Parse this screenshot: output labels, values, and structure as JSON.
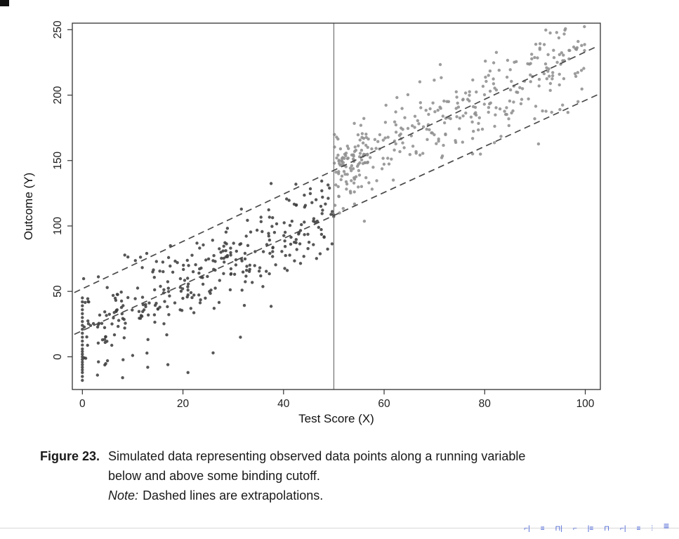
{
  "caption": {
    "label": "Figure 23.",
    "line1": "Simulated data representing observed data points along a running variable",
    "line2": "below and above some binding cutoff.",
    "note_label": "Note:",
    "note_text": "Dashed lines are extrapolations."
  },
  "artifacts": {
    "icon_color": "#3b57d0",
    "bottom_icons": [
      "⌐|",
      "≡",
      "⊓|",
      "⌐",
      "|≡",
      "⊓",
      "⌐|",
      "≡",
      "⫶",
      "≡"
    ]
  },
  "chart_data": {
    "type": "scatter",
    "title": "",
    "xlabel": "Test Score (X)",
    "ylabel": "Outcome (Y)",
    "xlim": [
      -2,
      103
    ],
    "ylim": [
      -25,
      255
    ],
    "xticks": [
      0,
      20,
      40,
      60,
      80,
      100
    ],
    "yticks": [
      0,
      50,
      100,
      150,
      200,
      250
    ],
    "grid": false,
    "legend": "none",
    "cutoff_x": 50,
    "point_color_below": "#3f3f3f",
    "point_color_above": "#909090",
    "line_color": "#4a4a4a",
    "frame_color": "#333333",
    "lines": [
      {
        "name": "below-cutoff-fit-extrapolated",
        "intercept": 20,
        "slope": 1.76,
        "style": "dashed"
      },
      {
        "name": "above-cutoff-fit-extrapolated",
        "intercept": 52,
        "slope": 1.81,
        "style": "dashed"
      }
    ],
    "series": [
      {
        "name": "below-cutoff-points",
        "color": "#3f3f3f",
        "gen": {
          "seed": 11,
          "n": 330,
          "xmin": 0,
          "xmax": 50,
          "intercept": 20,
          "slope": 1.76,
          "sd": 16
        }
      },
      {
        "name": "above-cutoff-points",
        "color": "#909090",
        "gen": {
          "seed": 22,
          "n": 300,
          "xmin": 50,
          "xmax": 100,
          "intercept": 52,
          "slope": 1.81,
          "sd": 16
        }
      },
      {
        "name": "above-cutoff-cluster",
        "color": "#909090",
        "gen": {
          "seed": 33,
          "n": 70,
          "xmin": 50,
          "xmax": 57,
          "intercept": 52,
          "slope": 1.81,
          "sd": 10
        }
      },
      {
        "name": "zero-pileup",
        "color": "#3f3f3f",
        "points": [
          [
            0,
            -18
          ],
          [
            0,
            -15
          ],
          [
            0,
            -12
          ],
          [
            0,
            -10
          ],
          [
            0,
            -8
          ],
          [
            0,
            -6
          ],
          [
            0,
            -4
          ],
          [
            0,
            -2
          ],
          [
            0,
            0
          ],
          [
            0,
            2
          ],
          [
            0,
            4
          ],
          [
            0,
            6
          ],
          [
            0,
            9
          ],
          [
            0,
            12
          ],
          [
            0,
            15
          ],
          [
            0,
            18
          ],
          [
            0,
            21
          ],
          [
            0,
            24
          ],
          [
            0,
            27
          ],
          [
            0,
            30
          ],
          [
            0,
            33
          ],
          [
            0,
            36
          ],
          [
            0,
            39
          ],
          [
            0,
            42
          ],
          [
            0,
            45
          ]
        ]
      },
      {
        "name": "low-outliers",
        "color": "#3f3f3f",
        "points": [
          [
            3,
            -14
          ],
          [
            8,
            -16
          ],
          [
            13,
            -8
          ],
          [
            5,
            -3
          ],
          [
            17,
            -6
          ],
          [
            10,
            1
          ],
          [
            21,
            -12
          ],
          [
            26,
            3
          ]
        ]
      }
    ]
  }
}
